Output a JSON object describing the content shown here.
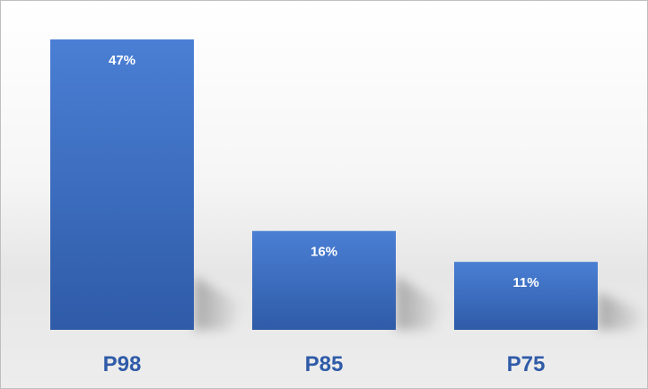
{
  "chart_data": {
    "type": "bar",
    "categories": [
      "P98",
      "P85",
      "P75"
    ],
    "values": [
      47,
      16,
      11
    ],
    "value_labels": [
      "47%",
      "16%",
      "11%"
    ],
    "unit": "%",
    "title": "",
    "xlabel": "",
    "ylabel": "",
    "ylim": [
      0,
      47
    ],
    "grid": false,
    "legend": "none",
    "colors": {
      "bar_top": "#4a7fd4",
      "bar_bottom": "#2f5ba8",
      "category_text": "#2f5ba8",
      "value_text": "#ffffff"
    }
  }
}
